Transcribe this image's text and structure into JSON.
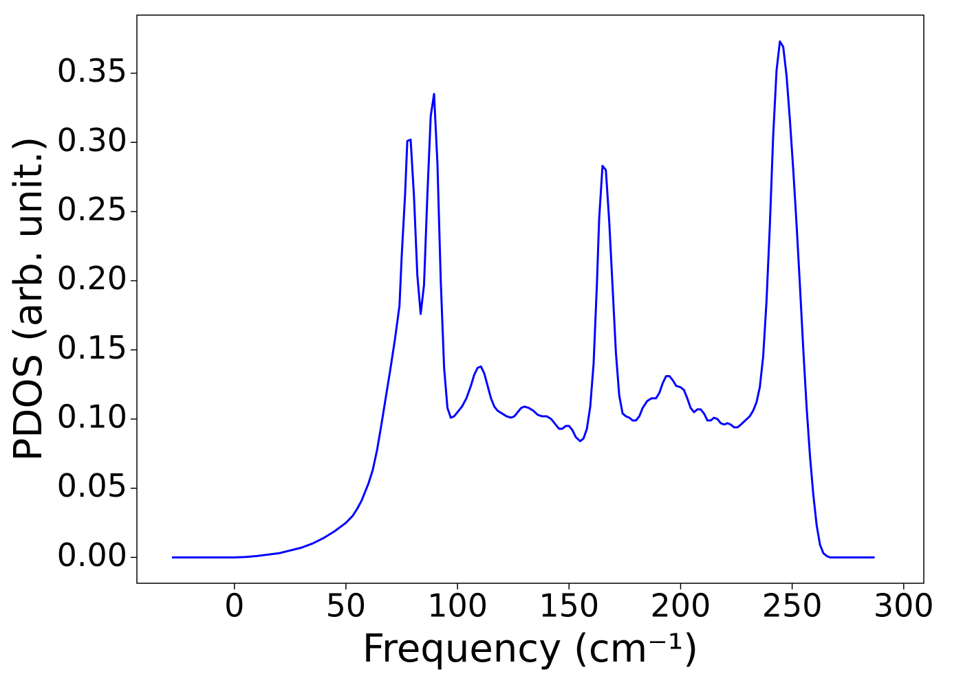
{
  "chart_data": {
    "type": "line",
    "xlabel": "Frequency (cm⁻¹)",
    "ylabel": "PDOS (arb. unit.)",
    "xlim": [
      -43.7,
      309.0
    ],
    "ylim": [
      -0.0187,
      0.392
    ],
    "xticks": [
      0,
      50,
      100,
      150,
      200,
      250,
      300
    ],
    "yticks": [
      {
        "value": 0,
        "label": "0.00"
      },
      {
        "value": 0.05,
        "label": "0.05"
      },
      {
        "value": 0.1,
        "label": "0.10"
      },
      {
        "value": 0.15,
        "label": "0.15"
      },
      {
        "value": 0.2,
        "label": "0.20"
      },
      {
        "value": 0.25,
        "label": "0.25"
      },
      {
        "value": 0.3,
        "label": "0.30"
      },
      {
        "value": 0.35,
        "label": "0.35"
      }
    ],
    "grid": false,
    "x": [
      -28,
      0,
      5,
      10,
      20,
      30,
      35,
      40,
      45,
      50,
      53,
      55,
      57,
      59,
      60,
      62,
      64,
      66,
      68,
      70,
      72,
      74,
      75,
      76.5,
      77.5,
      79,
      80.5,
      82,
      83.5,
      85,
      86.5,
      88,
      89.5,
      91,
      92.5,
      94,
      95.5,
      97,
      98.5,
      100,
      102,
      104,
      106,
      107.5,
      109,
      110.5,
      112,
      113.5,
      115,
      116.5,
      118,
      120,
      122,
      124,
      125.5,
      127,
      128.5,
      130,
      132,
      134,
      136,
      138,
      140,
      142,
      144,
      145.5,
      147,
      148.5,
      150,
      151.5,
      153,
      155,
      156.5,
      158,
      159.5,
      161,
      162.5,
      163.5,
      165,
      166.5,
      168,
      169.5,
      171,
      172.5,
      174,
      175.5,
      177,
      178.5,
      180,
      181.5,
      183,
      185,
      187,
      189,
      190.5,
      192,
      193.5,
      195,
      196.5,
      198,
      200,
      201.5,
      203,
      204.5,
      206,
      207.5,
      209,
      210.5,
      212,
      213.5,
      215,
      216.5,
      218,
      219.5,
      221,
      222.5,
      224,
      225.5,
      227,
      229,
      231,
      232.5,
      234,
      235.5,
      237,
      238.5,
      240,
      241.5,
      243,
      244.5,
      246,
      247.5,
      249,
      250.5,
      252,
      253.5,
      255,
      256.5,
      258,
      259.5,
      261,
      262.5,
      264,
      265.5,
      267,
      287
    ],
    "series": [
      {
        "color": "#0000ff",
        "values": [
          0,
          0,
          0.0003,
          0.001,
          0.003,
          0.007,
          0.01,
          0.014,
          0.019,
          0.025,
          0.03,
          0.035,
          0.041,
          0.049,
          0.053,
          0.063,
          0.078,
          0.097,
          0.117,
          0.137,
          0.158,
          0.182,
          0.218,
          0.262,
          0.301,
          0.302,
          0.261,
          0.204,
          0.176,
          0.197,
          0.262,
          0.319,
          0.335,
          0.285,
          0.2,
          0.137,
          0.108,
          0.101,
          0.102,
          0.105,
          0.109,
          0.115,
          0.124,
          0.132,
          0.137,
          0.138,
          0.133,
          0.124,
          0.115,
          0.109,
          0.106,
          0.104,
          0.102,
          0.101,
          0.102,
          0.105,
          0.108,
          0.109,
          0.108,
          0.106,
          0.103,
          0.102,
          0.102,
          0.1,
          0.096,
          0.093,
          0.093,
          0.095,
          0.095,
          0.092,
          0.087,
          0.084,
          0.086,
          0.093,
          0.109,
          0.14,
          0.198,
          0.245,
          0.283,
          0.28,
          0.243,
          0.196,
          0.148,
          0.117,
          0.104,
          0.102,
          0.101,
          0.099,
          0.099,
          0.102,
          0.108,
          0.113,
          0.115,
          0.115,
          0.119,
          0.126,
          0.131,
          0.131,
          0.128,
          0.124,
          0.123,
          0.121,
          0.115,
          0.108,
          0.105,
          0.107,
          0.107,
          0.104,
          0.099,
          0.099,
          0.101,
          0.1,
          0.097,
          0.096,
          0.097,
          0.096,
          0.094,
          0.094,
          0.096,
          0.099,
          0.102,
          0.106,
          0.112,
          0.123,
          0.145,
          0.185,
          0.24,
          0.305,
          0.352,
          0.373,
          0.369,
          0.348,
          0.316,
          0.28,
          0.24,
          0.196,
          0.15,
          0.108,
          0.073,
          0.045,
          0.023,
          0.009,
          0.003,
          0.001,
          0,
          0
        ]
      }
    ]
  }
}
